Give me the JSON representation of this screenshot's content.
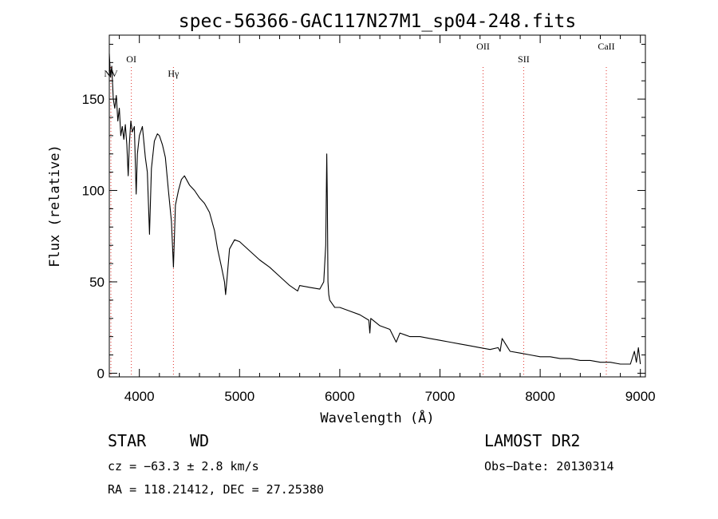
{
  "chart_data": {
    "type": "line",
    "title": "spec-56366-GAC117N27M1_sp04-248.fits",
    "xlabel": "Wavelength (Å)",
    "ylabel": "Flux (relative)",
    "xlim": [
      3700,
      9050
    ],
    "ylim": [
      -2,
      185
    ],
    "xticks": [
      4000,
      5000,
      6000,
      7000,
      8000,
      9000
    ],
    "yticks": [
      0,
      50,
      100,
      150
    ],
    "grid": false,
    "line_color": "#000000",
    "marker_color": "#e0302a",
    "spectral_lines": [
      {
        "name": "NV",
        "x": 3710
      },
      {
        "name": "OI",
        "x": 3920
      },
      {
        "name": "Hγ",
        "x": 4340
      },
      {
        "name": "OII",
        "x": 7430
      },
      {
        "name": "SII",
        "x": 7835
      },
      {
        "name": "CaII",
        "x": 8660
      }
    ],
    "series": [
      {
        "x": [
          3700,
          3712,
          3725,
          3740,
          3755,
          3770,
          3785,
          3800,
          3815,
          3830,
          3845,
          3860,
          3875,
          3889,
          3900,
          3915,
          3930,
          3950,
          3968,
          3980,
          4000,
          4030,
          4060,
          4080,
          4101,
          4120,
          4150,
          4180,
          4200,
          4230,
          4260,
          4290,
          4320,
          4340,
          4360,
          4390,
          4420,
          4450,
          4500,
          4550,
          4600,
          4650,
          4700,
          4750,
          4780,
          4820,
          4850,
          4861,
          4875,
          4900,
          4950,
          5000,
          5100,
          5200,
          5300,
          5400,
          5500,
          5580,
          5600,
          5700,
          5800,
          5840,
          5860,
          5870,
          5876,
          5882,
          5890,
          5900,
          5950,
          6000,
          6100,
          6200,
          6290,
          6300,
          6310,
          6400,
          6500,
          6563,
          6600,
          6700,
          6800,
          6900,
          7000,
          7100,
          7200,
          7300,
          7400,
          7500,
          7580,
          7600,
          7620,
          7700,
          7800,
          7900,
          8000,
          8100,
          8200,
          8300,
          8400,
          8500,
          8600,
          8700,
          8800,
          8900,
          8940,
          8960,
          8980,
          9000
        ],
        "values": [
          175,
          162,
          168,
          150,
          145,
          152,
          138,
          145,
          130,
          135,
          128,
          136,
          125,
          108,
          125,
          138,
          132,
          135,
          98,
          120,
          130,
          135,
          118,
          110,
          76,
          112,
          127,
          131,
          130,
          125,
          118,
          100,
          83,
          58,
          92,
          100,
          106,
          108,
          103,
          100,
          96,
          93,
          88,
          78,
          68,
          58,
          50,
          43,
          52,
          68,
          73,
          72,
          67,
          62,
          58,
          53,
          48,
          45,
          48,
          47,
          46,
          50,
          70,
          120,
          95,
          50,
          43,
          40,
          36,
          36,
          34,
          32,
          29,
          22,
          30,
          26,
          24,
          17,
          22,
          20,
          20,
          19,
          18,
          17,
          16,
          15,
          14,
          13,
          14,
          12,
          19,
          12,
          11,
          10,
          9,
          9,
          8,
          8,
          7,
          7,
          6,
          6,
          5,
          5,
          12,
          6,
          14,
          5
        ]
      }
    ]
  },
  "footer": {
    "object_class": "STAR",
    "subclass": "WD",
    "survey": "LAMOST DR2",
    "cz": "cz = −63.3 ± 2.8 km/s",
    "obs_date": "Obs−Date: 20130314",
    "coords": "RA = 118.21412, DEC =  27.25380"
  }
}
